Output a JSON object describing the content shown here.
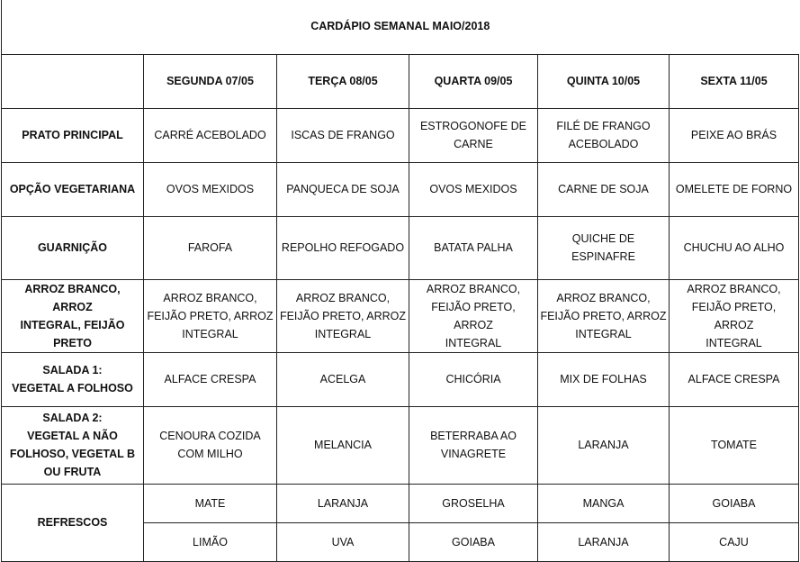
{
  "title": "CARDÁPIO SEMANAL MAIO/2018",
  "days": [
    "SEGUNDA 07/05",
    "TERÇA 08/05",
    "QUARTA 09/05",
    "QUINTA 10/05",
    "SEXTA 11/05"
  ],
  "rows": [
    {
      "label": "PRATO PRINCIPAL",
      "cells": [
        "CARRÉ ACEBOLADO",
        "ISCAS DE FRANGO",
        "ESTROGONOFE DE\nCARNE",
        "FILÉ DE FRANGO\nACEBOLADO",
        "PEIXE AO BRÁS"
      ]
    },
    {
      "label": "OPÇÃO VEGETARIANA",
      "cells": [
        "OVOS MEXIDOS",
        "PANQUECA DE SOJA",
        "OVOS MEXIDOS",
        "CARNE DE SOJA",
        "OMELETE DE FORNO"
      ]
    },
    {
      "label": "GUARNIÇÃO",
      "cells": [
        "FAROFA",
        "REPOLHO REFOGADO",
        "BATATA PALHA",
        "QUICHE DE ESPINAFRE",
        "CHUCHU AO ALHO"
      ]
    },
    {
      "label": "ARROZ BRANCO, ARROZ\nINTEGRAL, FEIJÃO PRETO",
      "cells": [
        "ARROZ BRANCO,\nFEIJÃO PRETO, ARROZ\nINTEGRAL",
        "ARROZ BRANCO,\nFEIJÃO PRETO, ARROZ\nINTEGRAL",
        "ARROZ BRANCO,\nFEIJÃO PRETO, ARROZ\nINTEGRAL",
        "ARROZ BRANCO,\nFEIJÃO PRETO, ARROZ\nINTEGRAL",
        "ARROZ BRANCO,\nFEIJÃO PRETO, ARROZ\nINTEGRAL"
      ]
    },
    {
      "label": "SALADA 1:\nVEGETAL A FOLHOSO",
      "cells": [
        "ALFACE CRESPA",
        "ACELGA",
        "CHICÓRIA",
        "MIX DE FOLHAS",
        "ALFACE CRESPA"
      ]
    },
    {
      "label": "SALADA 2:\nVEGETAL A NÃO\nFOLHOSO, VEGETAL B\nOU FRUTA",
      "cells": [
        "CENOURA COZIDA\nCOM MILHO",
        "MELANCIA",
        "BETERRABA AO\nVINAGRETE",
        "LARANJA",
        "TOMATE"
      ]
    }
  ],
  "refrescos": {
    "label": "REFRESCOS",
    "row1": [
      "MATE",
      "LARANJA",
      "GROSELHA",
      "MANGA",
      "GOIABA"
    ],
    "row2": [
      "LIMÃO",
      "UVA",
      "GOIABA",
      "LARANJA",
      "CAJU"
    ]
  }
}
